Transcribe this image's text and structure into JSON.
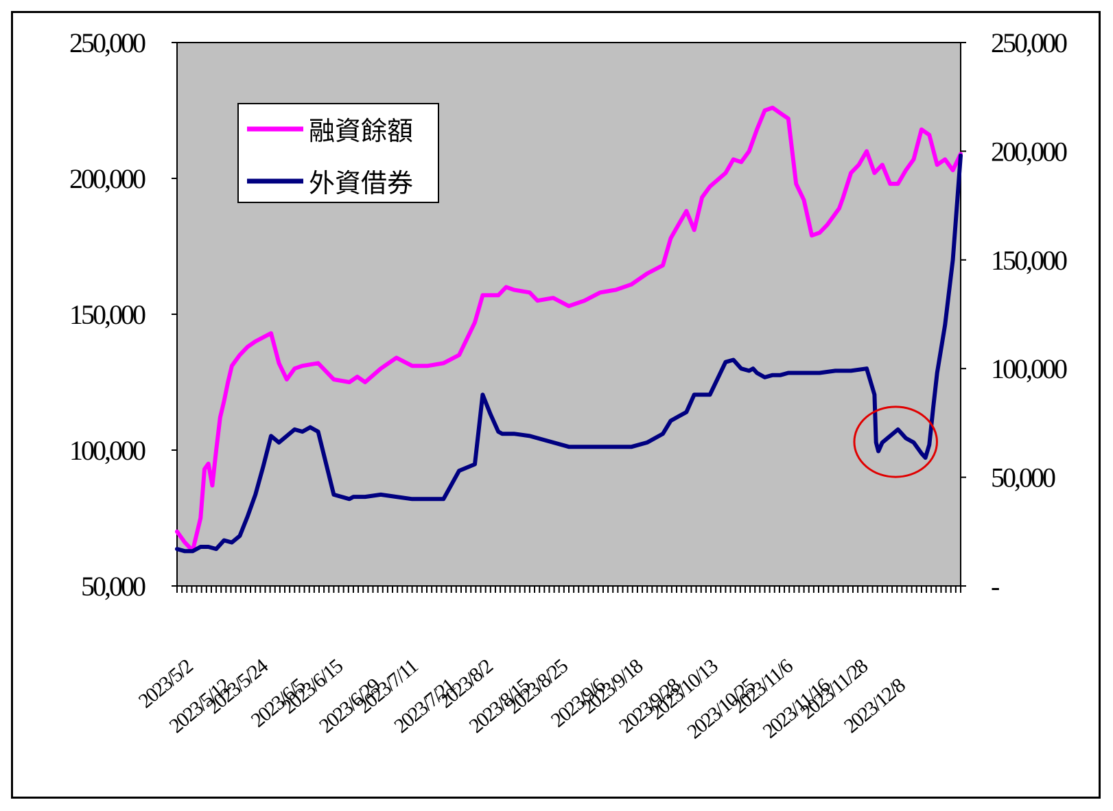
{
  "chart_data": {
    "type": "line",
    "title": "",
    "xlabel": "",
    "y_left": {
      "ylim": [
        50000,
        250000
      ],
      "ticks": [
        "50,000",
        "100,000",
        "150,000",
        "200,000",
        "250,000"
      ]
    },
    "y_right": {
      "ylim": [
        0,
        250000
      ],
      "ticks": [
        "-",
        "50,000",
        "100,000",
        "150,000",
        "200,000",
        "250,000"
      ]
    },
    "x_tick_labels": [
      "2023/5/2",
      "2023/5/12",
      "2023/5/24",
      "2023/6/5",
      "2023/6/15",
      "2023/6/29",
      "2023/7/11",
      "2023/7/21",
      "2023/8/2",
      "2023/8/15",
      "2023/8/25",
      "2023/9/6",
      "2023/9/18",
      "2023/9/28",
      "2023/10/13",
      "2023/10/25",
      "2023/11/6",
      "2023/11/16",
      "2023/11/28",
      "2023/12/8"
    ],
    "legend": {
      "placement": "top-left",
      "frame": true
    },
    "grid": false,
    "plot_background": "#c0c0c0",
    "annotation": {
      "type": "circle",
      "color": "#e00000",
      "x_range": [
        0.873,
        0.961
      ],
      "y_range": [
        59000,
        78000
      ],
      "axis": "right"
    },
    "series": [
      {
        "name": "融資餘額",
        "axis": "left",
        "color": "#ff00ff",
        "x": [
          0,
          0.01,
          0.02,
          0.03,
          0.035,
          0.04,
          0.045,
          0.05,
          0.055,
          0.06,
          0.065,
          0.07,
          0.08,
          0.09,
          0.1,
          0.12,
          0.13,
          0.14,
          0.15,
          0.16,
          0.18,
          0.2,
          0.22,
          0.23,
          0.24,
          0.26,
          0.28,
          0.3,
          0.32,
          0.34,
          0.36,
          0.38,
          0.39,
          0.4,
          0.41,
          0.42,
          0.43,
          0.45,
          0.46,
          0.48,
          0.5,
          0.52,
          0.54,
          0.56,
          0.58,
          0.6,
          0.62,
          0.63,
          0.64,
          0.65,
          0.66,
          0.67,
          0.68,
          0.7,
          0.71,
          0.72,
          0.73,
          0.74,
          0.75,
          0.76,
          0.77,
          0.78,
          0.79,
          0.8,
          0.81,
          0.82,
          0.83,
          0.84,
          0.845,
          0.85,
          0.86,
          0.87,
          0.88,
          0.89,
          0.9,
          0.91,
          0.92,
          0.93,
          0.94,
          0.95,
          0.96,
          0.97,
          0.98,
          0.99,
          1.0
        ],
        "values": [
          70000,
          66000,
          63000,
          75000,
          93000,
          95000,
          87000,
          100000,
          112000,
          118000,
          125000,
          131000,
          135000,
          138000,
          140000,
          143000,
          132000,
          126000,
          130000,
          131000,
          132000,
          126000,
          125000,
          127000,
          125000,
          130000,
          134000,
          131000,
          131000,
          132000,
          135000,
          147000,
          157000,
          157000,
          157000,
          160000,
          159000,
          158000,
          155000,
          156000,
          153000,
          155000,
          158000,
          159000,
          161000,
          165000,
          168000,
          178000,
          183000,
          188000,
          181000,
          193000,
          197000,
          202000,
          207000,
          206000,
          210000,
          218000,
          225000,
          226000,
          224000,
          222000,
          198000,
          192000,
          179000,
          180000,
          183000,
          187000,
          189000,
          193000,
          202000,
          205000,
          210000,
          202000,
          205000,
          198000,
          198000,
          203000,
          207000,
          218000,
          216000,
          205000,
          207000,
          203000,
          209000
        ]
      },
      {
        "name": "外資借券",
        "axis": "right",
        "color": "#000080",
        "x": [
          0,
          0.01,
          0.02,
          0.03,
          0.04,
          0.05,
          0.06,
          0.07,
          0.08,
          0.09,
          0.1,
          0.11,
          0.12,
          0.13,
          0.14,
          0.15,
          0.16,
          0.17,
          0.18,
          0.2,
          0.22,
          0.225,
          0.23,
          0.24,
          0.26,
          0.28,
          0.3,
          0.32,
          0.34,
          0.36,
          0.38,
          0.385,
          0.39,
          0.4,
          0.41,
          0.415,
          0.42,
          0.43,
          0.45,
          0.48,
          0.5,
          0.52,
          0.55,
          0.58,
          0.6,
          0.62,
          0.63,
          0.64,
          0.65,
          0.66,
          0.67,
          0.68,
          0.7,
          0.71,
          0.72,
          0.73,
          0.735,
          0.74,
          0.75,
          0.76,
          0.77,
          0.78,
          0.8,
          0.82,
          0.84,
          0.86,
          0.88,
          0.89,
          0.892,
          0.895,
          0.9,
          0.91,
          0.92,
          0.93,
          0.94,
          0.95,
          0.955,
          0.96,
          0.965,
          0.97,
          0.98,
          0.99,
          1.0
        ],
        "values": [
          17000,
          16000,
          16000,
          18000,
          18000,
          17000,
          21000,
          20000,
          23000,
          32000,
          42000,
          55000,
          69000,
          66000,
          69000,
          72000,
          71000,
          73000,
          71000,
          42000,
          40000,
          41000,
          41000,
          41000,
          42000,
          41000,
          40000,
          40000,
          40000,
          53000,
          56000,
          72000,
          88000,
          79000,
          71000,
          70000,
          70000,
          70000,
          69000,
          66000,
          64000,
          64000,
          64000,
          64000,
          66000,
          70000,
          76000,
          78000,
          80000,
          88000,
          88000,
          88000,
          103000,
          104000,
          100000,
          99000,
          100000,
          98000,
          96000,
          97000,
          97000,
          98000,
          98000,
          98000,
          99000,
          99000,
          100000,
          88000,
          66000,
          62000,
          66000,
          69000,
          72000,
          68000,
          66000,
          61000,
          59000,
          65000,
          82000,
          98000,
          120000,
          150000,
          198000
        ]
      }
    ]
  }
}
